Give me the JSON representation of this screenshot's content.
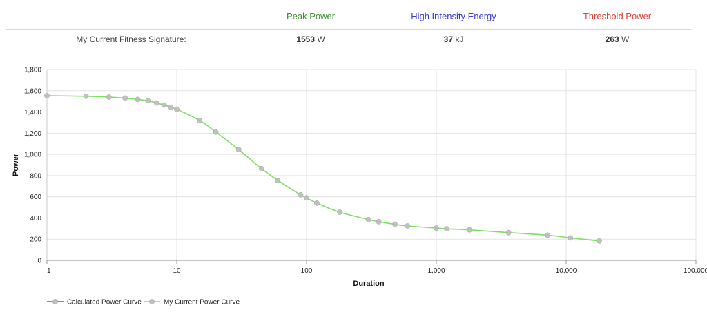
{
  "header": {
    "peak_power_label": "Peak Power",
    "hie_label": "High Intensity Energy",
    "threshold_label": "Threshold Power",
    "signature_label": "My Current Fitness Signature:",
    "peak_power_value": "1553",
    "peak_power_unit": "W",
    "hie_value": "37",
    "hie_unit": "kJ",
    "threshold_value": "263",
    "threshold_unit": "W"
  },
  "colors": {
    "peak": "#3c8d2f",
    "hie": "#3b3bd1",
    "threshold": "#e0403a",
    "curve_calculated": "#b24a4a",
    "curve_current": "#7be061",
    "marker": "#bdbdbd"
  },
  "chart_data": {
    "type": "line",
    "xlabel": "Duration",
    "ylabel": "Power",
    "x_scale": "log",
    "xlim": [
      1,
      100000
    ],
    "ylim": [
      0,
      1800
    ],
    "x_ticks": [
      1,
      10,
      100,
      1000,
      10000,
      100000
    ],
    "x_tick_labels": [
      "1",
      "10",
      "100",
      "1,000",
      "10,000",
      "100,000"
    ],
    "y_ticks": [
      0,
      200,
      400,
      600,
      800,
      1000,
      1200,
      1400,
      1600,
      1800
    ],
    "y_tick_labels": [
      "0",
      "200",
      "400",
      "600",
      "800",
      "1,000",
      "1,200",
      "1,400",
      "1,600",
      "1,800"
    ],
    "grid": true,
    "legend": "bottom-left",
    "series": [
      {
        "name": "Calculated Power Curve",
        "x": [],
        "values": []
      },
      {
        "name": "My Current Power Curve",
        "x": [
          1,
          2,
          3,
          4,
          5,
          6,
          7,
          8,
          9,
          10,
          15,
          20,
          30,
          45,
          60,
          90,
          100,
          120,
          180,
          300,
          360,
          480,
          600,
          1000,
          1200,
          1800,
          3600,
          7200,
          10800,
          18000
        ],
        "values": [
          1553,
          1548,
          1540,
          1530,
          1518,
          1505,
          1485,
          1465,
          1445,
          1425,
          1320,
          1210,
          1045,
          865,
          755,
          618,
          590,
          540,
          455,
          385,
          365,
          340,
          325,
          305,
          298,
          288,
          262,
          238,
          212,
          183
        ]
      }
    ]
  }
}
